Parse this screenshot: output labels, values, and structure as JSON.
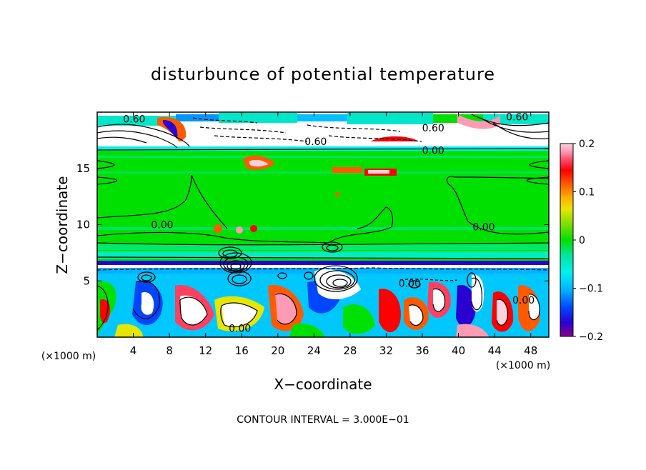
{
  "chart_data": {
    "type": "heatmap",
    "title": "disturbunce of potential temperature",
    "xlabel": "X−coordinate",
    "ylabel": "Z−coordinate",
    "x_unit": "(×1000 m)",
    "y_unit": "(×1000 m)",
    "x_ticks": [
      "4",
      "8",
      "12",
      "16",
      "20",
      "24",
      "28",
      "32",
      "36",
      "40",
      "44",
      "48"
    ],
    "x_tick_values": [
      4,
      8,
      12,
      16,
      20,
      24,
      28,
      32,
      36,
      40,
      44,
      48
    ],
    "y_ticks": [
      "5",
      "10",
      "15"
    ],
    "y_tick_values": [
      5,
      10,
      15
    ],
    "xlim": [
      0,
      50
    ],
    "ylim": [
      0,
      20
    ],
    "colorbar": {
      "ticks": [
        "0.2",
        "0.1",
        "0",
        "−0.1",
        "−0.2"
      ],
      "tick_values": [
        0.2,
        0.1,
        0,
        -0.1,
        -0.2
      ],
      "range": [
        -0.2,
        0.2
      ],
      "colors": [
        "#8b008b",
        "#2a00d0",
        "#0046ff",
        "#00b2ff",
        "#00f0f0",
        "#00e6a0",
        "#00e000",
        "#7dde00",
        "#e6e600",
        "#ffb000",
        "#ff5a00",
        "#ff0000",
        "#ff4060",
        "#ff9ab4",
        "#ffd2dc"
      ]
    },
    "contour_labels": [
      {
        "text": "0.60",
        "x": 4.1,
        "z": 19.4
      },
      {
        "text": "0.60",
        "x": 46.5,
        "z": 19.6
      },
      {
        "text": "0.60",
        "x": 37.2,
        "z": 18.6
      },
      {
        "text": "0.60",
        "x": 24.2,
        "z": 17.4
      },
      {
        "text": "0.00",
        "x": 37.2,
        "z": 16.6
      },
      {
        "text": "0.00",
        "x": 7.2,
        "z": 10.0
      },
      {
        "text": "0.00",
        "x": 42.8,
        "z": 9.8
      },
      {
        "text": "0.00",
        "x": 47.2,
        "z": 3.3
      },
      {
        "text": "0.00",
        "x": 15.8,
        "z": 0.8
      },
      {
        "text": "0.00",
        "x": 34.6,
        "z": 4.8
      }
    ],
    "contour_interval_label": "CONTOUR INTERVAL = 3.000E−01"
  }
}
